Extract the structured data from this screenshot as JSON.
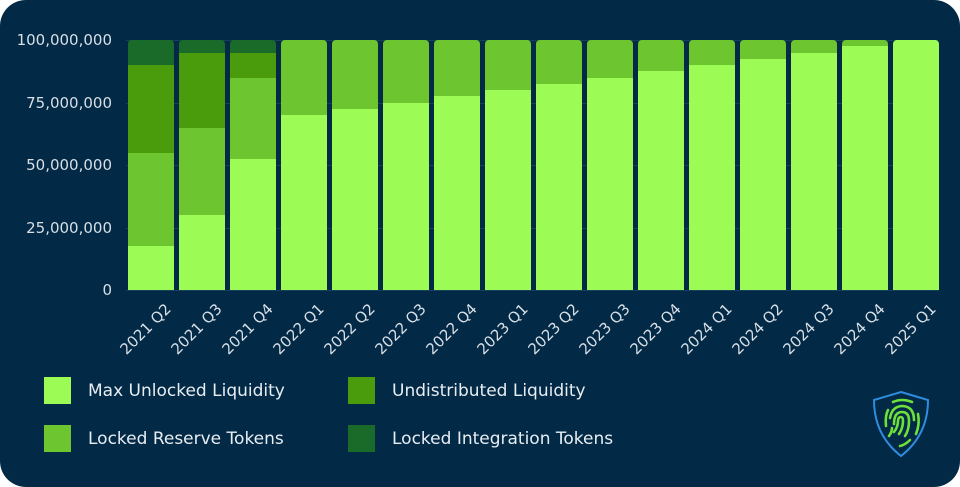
{
  "chart_data": {
    "type": "bar",
    "stacked": true,
    "title": "",
    "xlabel": "",
    "ylabel": "",
    "ylim": [
      0,
      100000000
    ],
    "yticks": [
      "0",
      "25,000,000",
      "50,000,000",
      "75,000,000",
      "100,000,000"
    ],
    "grid": true,
    "legend_position": "bottom",
    "categories": [
      "2021 Q2",
      "2021 Q3",
      "2021 Q4",
      "2022 Q1",
      "2022 Q2",
      "2022 Q3",
      "2022 Q4",
      "2023 Q1",
      "2023 Q2",
      "2023 Q3",
      "2023 Q4",
      "2024 Q1",
      "2024 Q2",
      "2024 Q3",
      "2024 Q4",
      "2025 Q1"
    ],
    "series": [
      {
        "name": "Max Unlocked Liquidity",
        "color": "#9cfc55",
        "values": [
          17500000,
          30000000,
          52500000,
          70000000,
          72500000,
          75000000,
          77500000,
          80000000,
          82500000,
          85000000,
          87500000,
          90000000,
          92500000,
          95000000,
          97500000,
          100000000
        ]
      },
      {
        "name": "Locked Reserve Tokens",
        "color": "#6dc630",
        "values": [
          37500000,
          35000000,
          32500000,
          30000000,
          27500000,
          25000000,
          22500000,
          20000000,
          17500000,
          15000000,
          12500000,
          10000000,
          7500000,
          5000000,
          2500000,
          0
        ]
      },
      {
        "name": "Undistributed Liquidity",
        "color": "#4a9c0c",
        "values": [
          35000000,
          30000000,
          10000000,
          0,
          0,
          0,
          0,
          0,
          0,
          0,
          0,
          0,
          0,
          0,
          0,
          0
        ]
      },
      {
        "name": "Locked Integration Tokens",
        "color": "#1a6b29",
        "values": [
          10000000,
          5000000,
          5000000,
          0,
          0,
          0,
          0,
          0,
          0,
          0,
          0,
          0,
          0,
          0,
          0,
          0
        ]
      }
    ]
  },
  "legend": [
    {
      "label": "Max Unlocked Liquidity",
      "color": "#9cfc55"
    },
    {
      "label": "Undistributed Liquidity",
      "color": "#4a9c0c"
    },
    {
      "label": "Locked Reserve Tokens",
      "color": "#6dc630"
    },
    {
      "label": "Locked Integration Tokens",
      "color": "#1a6b29"
    }
  ],
  "logo": {
    "icon": "fingerprint-shield-icon"
  }
}
